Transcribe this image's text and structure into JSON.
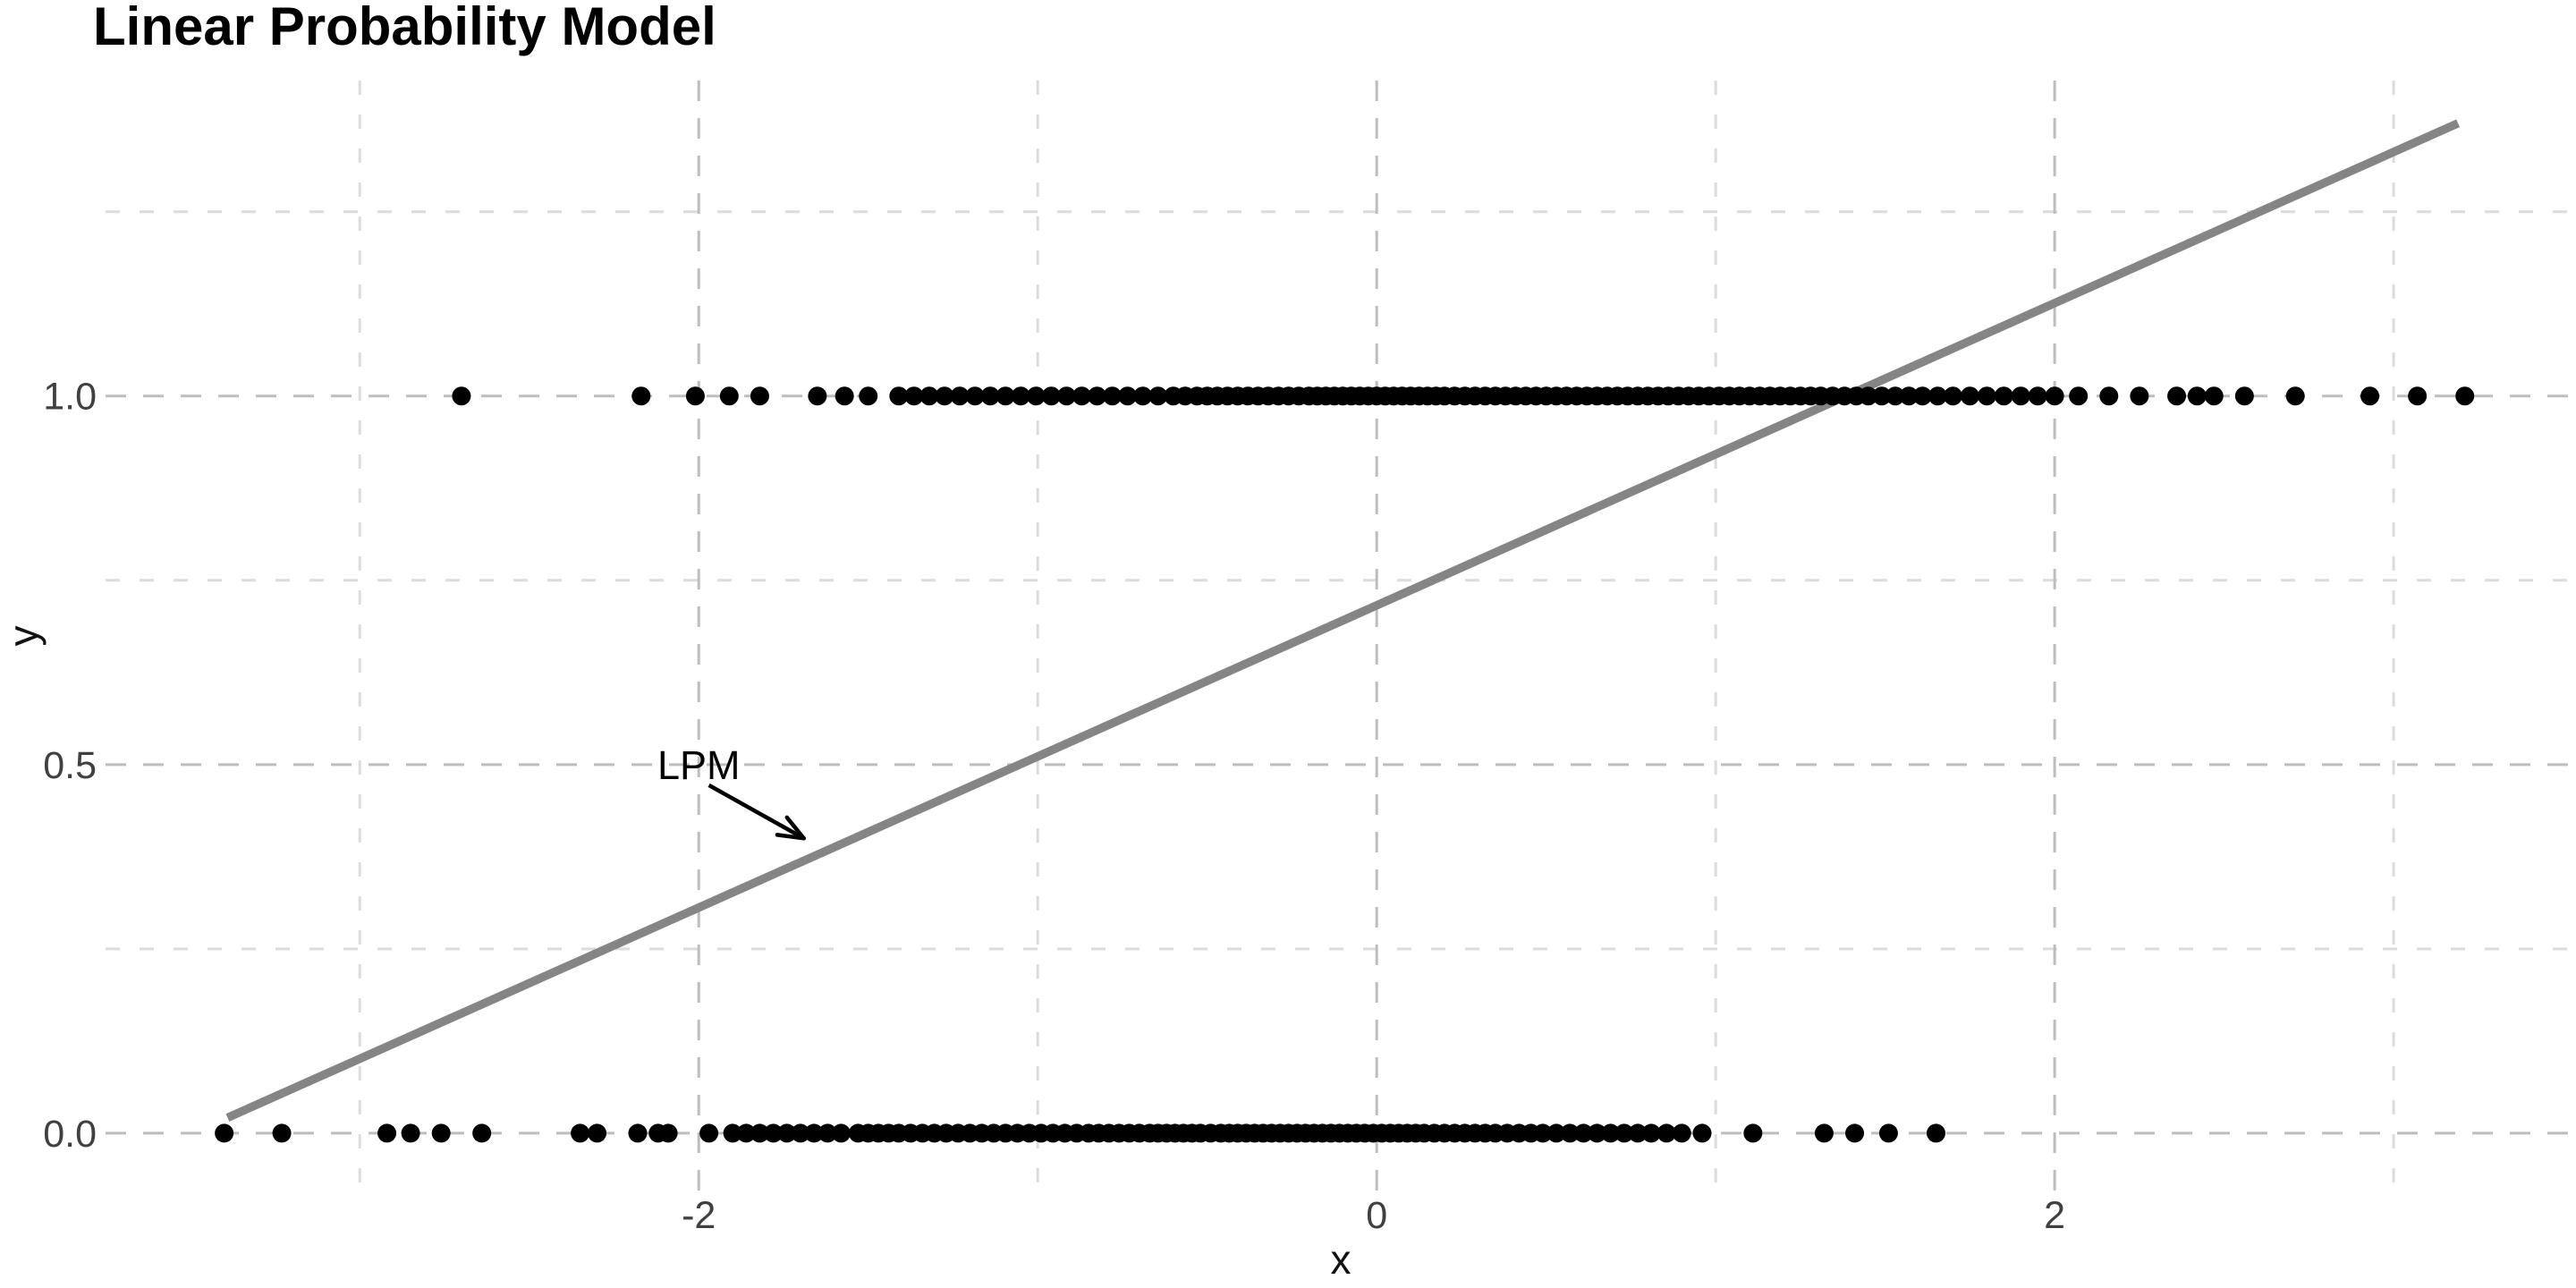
{
  "page": {
    "background": "#ffffff"
  },
  "chart_data": {
    "type": "scatter",
    "title": "Linear Probability Model",
    "xlabel": "x",
    "ylabel": "y",
    "legend": "none",
    "grid": "dashed",
    "x_domain": [
      -3.75,
      3.538
    ],
    "y_domain": [
      -0.079,
      1.428
    ],
    "x_ticks": [
      {
        "value": -2,
        "label": "-2"
      },
      {
        "value": 0,
        "label": "0"
      },
      {
        "value": 2,
        "label": "2"
      }
    ],
    "x_minor_ticks": [
      -3,
      -1,
      1,
      3
    ],
    "y_ticks": [
      {
        "value": 0.0,
        "label": "0.0"
      },
      {
        "value": 0.5,
        "label": "0.5"
      },
      {
        "value": 1.0,
        "label": "1.0"
      }
    ],
    "y_minor_ticks": [
      0.25,
      0.75,
      1.25
    ],
    "colors": {
      "background": "#ffffff",
      "point": "#000000",
      "regression_line": "#858585",
      "grid_major": "#bdbdbd",
      "grid_minor": "#dcdcdc",
      "axis_text": "#404040",
      "title": "#000000",
      "annotation": "#000000"
    },
    "regression_line": {
      "name": "LPM",
      "slope": 0.205,
      "intercept": 0.715,
      "x1": -3.39,
      "y1": 0.021,
      "x2": 3.19,
      "y2": 1.37
    },
    "annotation": {
      "text": "LPM",
      "text_x": -2.0,
      "text_y": 0.5,
      "arrow": {
        "x1": -1.97,
        "y1": 0.472,
        "x2": -1.69,
        "y2": 0.4
      }
    },
    "series": [
      {
        "name": "y = 1",
        "y": 1,
        "x": [
          -2.7,
          -2.17,
          -2.01,
          -1.91,
          -1.82,
          -1.65,
          -1.57,
          -1.5,
          -1.41,
          -1.365,
          -1.32,
          -1.275,
          -1.23,
          -1.185,
          -1.14,
          -1.095,
          -1.05,
          -1.005,
          -0.96,
          -0.915,
          -0.87,
          -0.825,
          -0.78,
          -0.735,
          -0.69,
          -0.645,
          -0.6,
          -0.565,
          -0.53,
          -0.5,
          -0.47,
          -0.44,
          -0.41,
          -0.38,
          -0.35,
          -0.32,
          -0.29,
          -0.26,
          -0.23,
          -0.2,
          -0.175,
          -0.15,
          -0.125,
          -0.1,
          -0.075,
          -0.05,
          -0.025,
          0.0,
          0.025,
          0.05,
          0.075,
          0.1,
          0.125,
          0.15,
          0.175,
          0.2,
          0.23,
          0.26,
          0.29,
          0.32,
          0.35,
          0.38,
          0.41,
          0.44,
          0.47,
          0.5,
          0.53,
          0.56,
          0.59,
          0.62,
          0.65,
          0.68,
          0.71,
          0.74,
          0.77,
          0.8,
          0.83,
          0.86,
          0.89,
          0.92,
          0.95,
          0.98,
          1.01,
          1.04,
          1.07,
          1.1,
          1.13,
          1.16,
          1.19,
          1.22,
          1.25,
          1.28,
          1.31,
          1.345,
          1.38,
          1.415,
          1.45,
          1.49,
          1.53,
          1.57,
          1.61,
          1.655,
          1.7,
          1.75,
          1.8,
          1.85,
          1.9,
          1.95,
          2.0,
          2.07,
          2.16,
          2.25,
          2.36,
          2.42,
          2.47,
          2.56,
          2.71,
          2.93,
          3.07,
          3.21
        ]
      },
      {
        "name": "y = 0",
        "y": 0,
        "x": [
          -3.4,
          -3.23,
          -2.92,
          -2.85,
          -2.76,
          -2.64,
          -2.35,
          -2.3,
          -2.18,
          -2.12,
          -2.09,
          -1.97,
          -1.9,
          -1.86,
          -1.82,
          -1.78,
          -1.74,
          -1.7,
          -1.66,
          -1.62,
          -1.58,
          -1.53,
          -1.5,
          -1.47,
          -1.44,
          -1.41,
          -1.375,
          -1.34,
          -1.305,
          -1.27,
          -1.235,
          -1.2,
          -1.165,
          -1.13,
          -1.095,
          -1.06,
          -1.025,
          -0.99,
          -0.955,
          -0.92,
          -0.885,
          -0.85,
          -0.82,
          -0.79,
          -0.76,
          -0.73,
          -0.7,
          -0.67,
          -0.645,
          -0.62,
          -0.595,
          -0.57,
          -0.545,
          -0.52,
          -0.49,
          -0.46,
          -0.435,
          -0.41,
          -0.385,
          -0.36,
          -0.335,
          -0.31,
          -0.285,
          -0.26,
          -0.235,
          -0.21,
          -0.185,
          -0.16,
          -0.135,
          -0.11,
          -0.085,
          -0.06,
          -0.035,
          -0.01,
          0.015,
          0.04,
          0.065,
          0.09,
          0.115,
          0.14,
          0.17,
          0.2,
          0.23,
          0.26,
          0.29,
          0.32,
          0.35,
          0.385,
          0.42,
          0.455,
          0.49,
          0.53,
          0.57,
          0.61,
          0.65,
          0.69,
          0.73,
          0.77,
          0.81,
          0.855,
          0.9,
          0.96,
          1.11,
          1.32,
          1.41,
          1.51,
          1.65
        ]
      }
    ]
  }
}
